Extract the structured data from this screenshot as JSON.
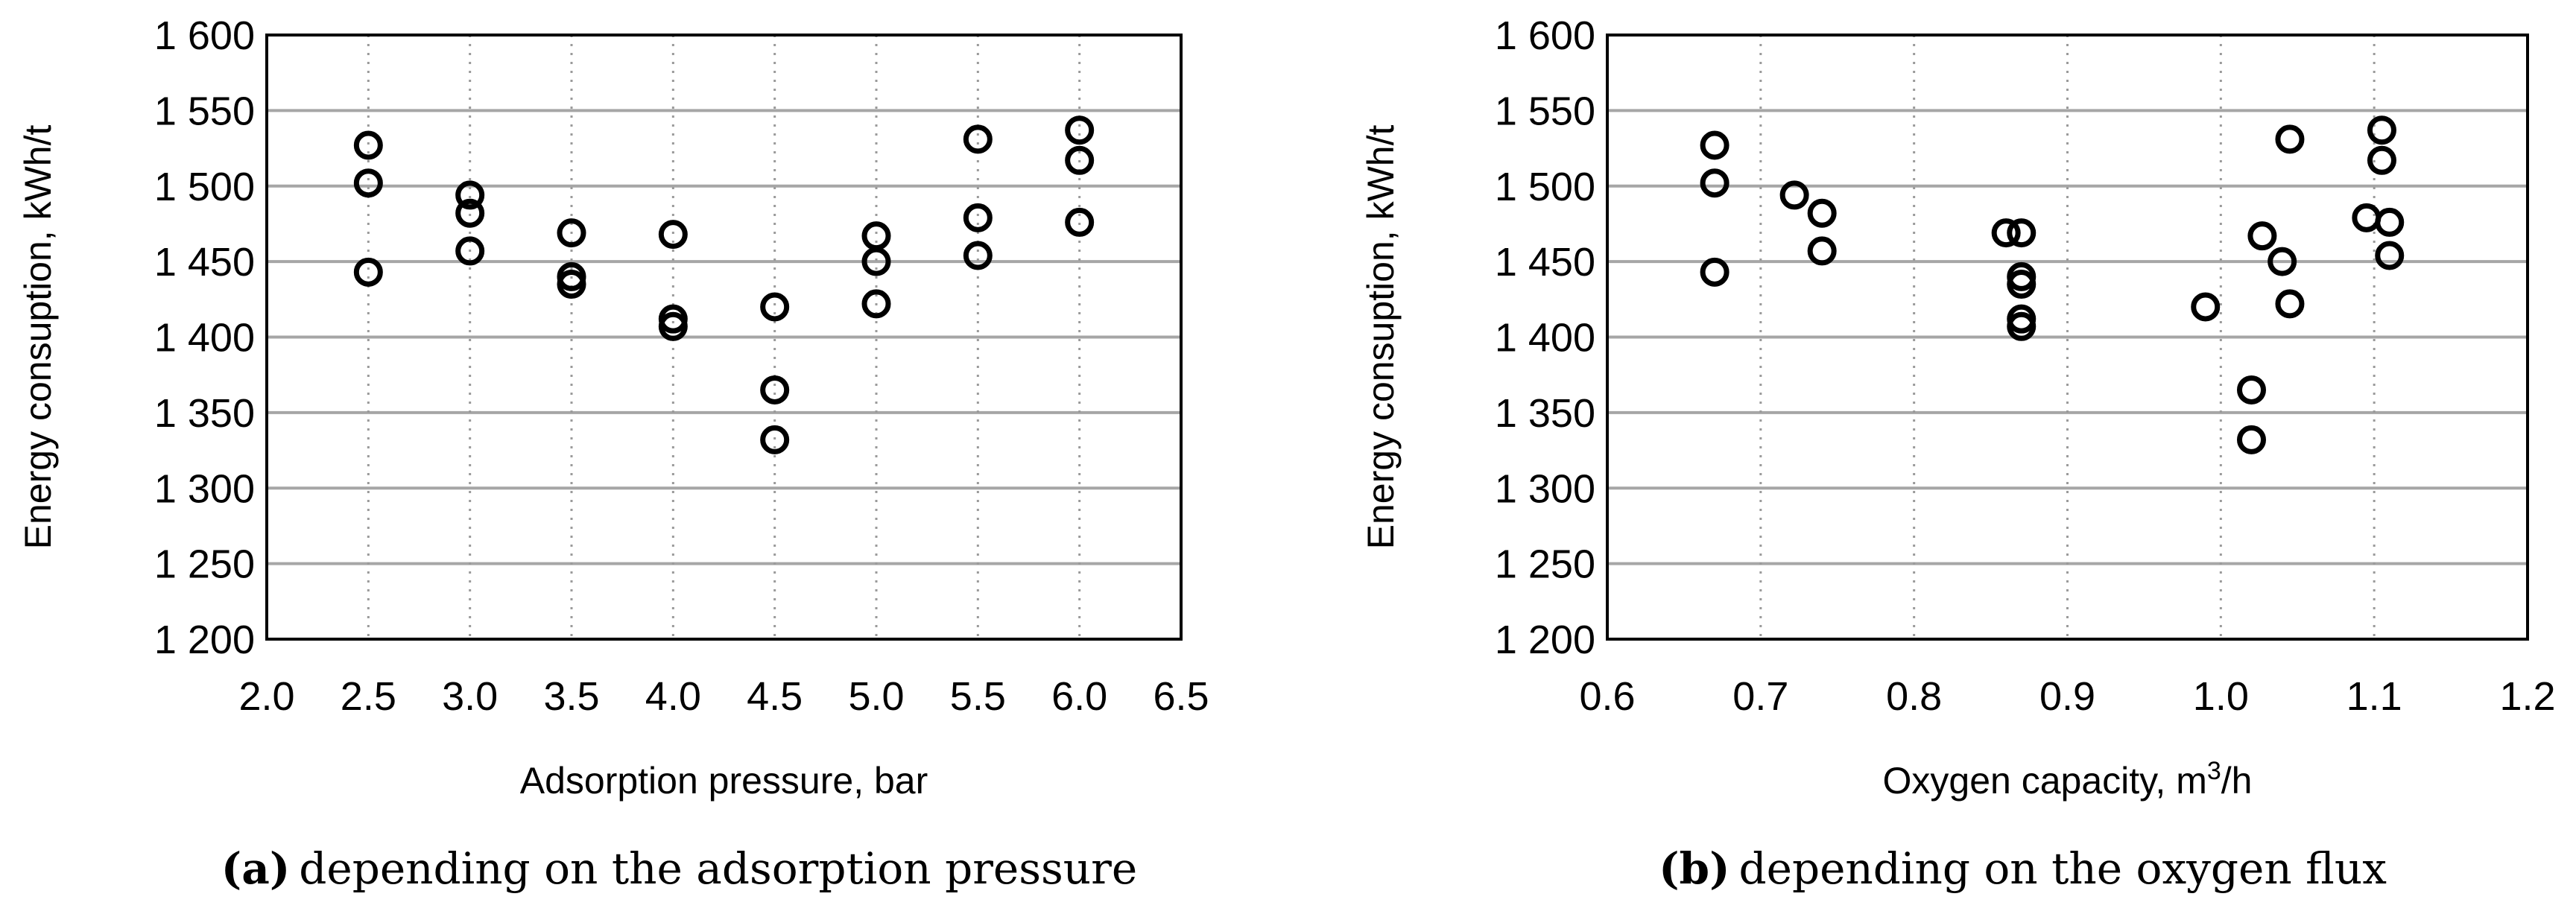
{
  "chart_data": [
    {
      "type": "scatter",
      "title": "",
      "xlabel": "Adsorption pressure, bar",
      "ylabel": "Energy consuption, kWh/t",
      "xlim": [
        2.0,
        6.5
      ],
      "ylim": [
        1200,
        1600
      ],
      "x_ticks": [
        "2.0",
        "2.5",
        "3.0",
        "3.5",
        "4.0",
        "4.5",
        "5.0",
        "5.5",
        "6.0",
        "6.5"
      ],
      "y_ticks": [
        "1 200",
        "1 250",
        "1 300",
        "1 350",
        "1 400",
        "1 450",
        "1 500",
        "1 550",
        "1 600"
      ],
      "grid": {
        "x": true,
        "y": true
      },
      "caption_label": "(a)",
      "caption_text": "depending on the adsorption pressure",
      "x": [
        2.5,
        2.5,
        2.5,
        3.0,
        3.0,
        3.0,
        3.5,
        3.5,
        3.5,
        4.0,
        4.0,
        4.0,
        4.5,
        4.5,
        4.5,
        5.0,
        5.0,
        5.0,
        5.5,
        5.5,
        5.5,
        6.0,
        6.0,
        6.0
      ],
      "y": [
        1527,
        1502,
        1443,
        1494,
        1482,
        1457,
        1469,
        1440,
        1435,
        1468,
        1412,
        1407,
        1420,
        1365,
        1332,
        1467,
        1450,
        1422,
        1531,
        1479,
        1454,
        1537,
        1517,
        1476
      ]
    },
    {
      "type": "scatter",
      "title": "",
      "xlabel": "Oxygen capacity, m",
      "xlabel_sup": "3",
      "xlabel_suffix": "/h",
      "ylabel": "Energy consuption, kWh/t",
      "xlim": [
        0.6,
        1.2
      ],
      "ylim": [
        1200,
        1600
      ],
      "x_ticks": [
        "0.6",
        "0.7",
        "0.8",
        "0.9",
        "1.0",
        "1.1",
        "1.2"
      ],
      "y_ticks": [
        "1 200",
        "1 250",
        "1 300",
        "1 350",
        "1 400",
        "1 450",
        "1 500",
        "1 550",
        "1 600"
      ],
      "grid": {
        "x": true,
        "y": true
      },
      "caption_label": "(b)",
      "caption_text": "depending on the oxygen flux",
      "x": [
        0.67,
        0.67,
        0.67,
        0.722,
        0.74,
        0.74,
        0.86,
        0.87,
        0.87,
        0.87,
        0.87,
        0.87,
        0.99,
        1.02,
        1.02,
        1.027,
        1.04,
        1.045,
        1.045,
        1.095,
        1.105,
        1.105,
        1.11,
        1.11
      ],
      "y": [
        1527,
        1502,
        1443,
        1494,
        1482,
        1457,
        1469,
        1469,
        1440,
        1435,
        1412,
        1407,
        1420,
        1365,
        1332,
        1467,
        1450,
        1422,
        1531,
        1479,
        1537,
        1517,
        1476,
        1454
      ]
    }
  ]
}
